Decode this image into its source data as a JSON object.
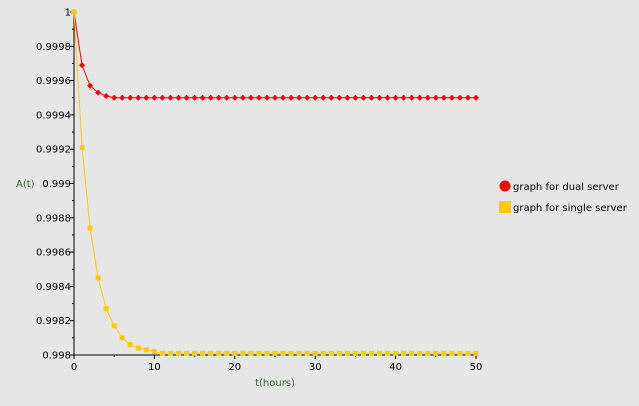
{
  "chart_data": {
    "type": "line",
    "title": "",
    "xlabel": "t(hours)",
    "ylabel": "A(t)",
    "xlim": [
      0,
      50
    ],
    "ylim": [
      0.998,
      1.0
    ],
    "x_ticks": [
      "0",
      "10",
      "20",
      "30",
      "40",
      "50"
    ],
    "y_ticks": [
      "0.998",
      "0.9982",
      "0.9984",
      "0.9986",
      "0.9988",
      "0.999",
      "0.9992",
      "0.9994",
      "0.9996",
      "0.9998",
      "1"
    ],
    "grid": false,
    "legend_position": "right",
    "series": [
      {
        "name": "graph for dual server",
        "color": "#ff0000",
        "marker": "diamond",
        "legend_marker": "circle",
        "x": [
          0,
          1,
          2,
          3,
          4,
          5,
          6,
          7,
          8,
          9,
          10,
          11,
          12,
          13,
          14,
          15,
          16,
          17,
          18,
          19,
          20,
          21,
          22,
          23,
          24,
          25,
          26,
          27,
          28,
          29,
          30,
          31,
          32,
          33,
          34,
          35,
          36,
          37,
          38,
          39,
          40,
          41,
          42,
          43,
          44,
          45,
          46,
          47,
          48,
          49,
          50
        ],
        "y": [
          1.0,
          0.99969,
          0.99957,
          0.99953,
          0.99951,
          0.9995,
          0.9995,
          0.9995,
          0.9995,
          0.9995,
          0.9995,
          0.9995,
          0.9995,
          0.9995,
          0.9995,
          0.9995,
          0.9995,
          0.9995,
          0.9995,
          0.9995,
          0.9995,
          0.9995,
          0.9995,
          0.9995,
          0.9995,
          0.9995,
          0.9995,
          0.9995,
          0.9995,
          0.9995,
          0.9995,
          0.9995,
          0.9995,
          0.9995,
          0.9995,
          0.9995,
          0.9995,
          0.9995,
          0.9995,
          0.9995,
          0.9995,
          0.9995,
          0.9995,
          0.9995,
          0.9995,
          0.9995,
          0.9995,
          0.9995,
          0.9995,
          0.9995,
          0.9995
        ]
      },
      {
        "name": "graph for single server",
        "color": "#ffcc00",
        "marker": "square",
        "legend_marker": "square",
        "x": [
          0,
          1,
          2,
          3,
          4,
          5,
          6,
          7,
          8,
          9,
          10,
          11,
          12,
          13,
          14,
          15,
          16,
          17,
          18,
          19,
          20,
          21,
          22,
          23,
          24,
          25,
          26,
          27,
          28,
          29,
          30,
          31,
          32,
          33,
          34,
          35,
          36,
          37,
          38,
          39,
          40,
          41,
          42,
          43,
          44,
          45,
          46,
          47,
          48,
          49,
          50
        ],
        "y": [
          1.0,
          0.99921,
          0.99874,
          0.99845,
          0.99827,
          0.99817,
          0.9981,
          0.99806,
          0.99804,
          0.99803,
          0.99802,
          0.99801,
          0.99801,
          0.99801,
          0.99801,
          0.99801,
          0.99801,
          0.99801,
          0.99801,
          0.99801,
          0.99801,
          0.99801,
          0.99801,
          0.99801,
          0.99801,
          0.99801,
          0.99801,
          0.99801,
          0.99801,
          0.99801,
          0.99801,
          0.99801,
          0.99801,
          0.99801,
          0.99801,
          0.99801,
          0.99801,
          0.99801,
          0.99801,
          0.99801,
          0.99801,
          0.99801,
          0.99801,
          0.99801,
          0.99801,
          0.99801,
          0.99801,
          0.99801,
          0.99801,
          0.99801,
          0.99801
        ]
      }
    ],
    "axis_title_color": "#336633"
  }
}
